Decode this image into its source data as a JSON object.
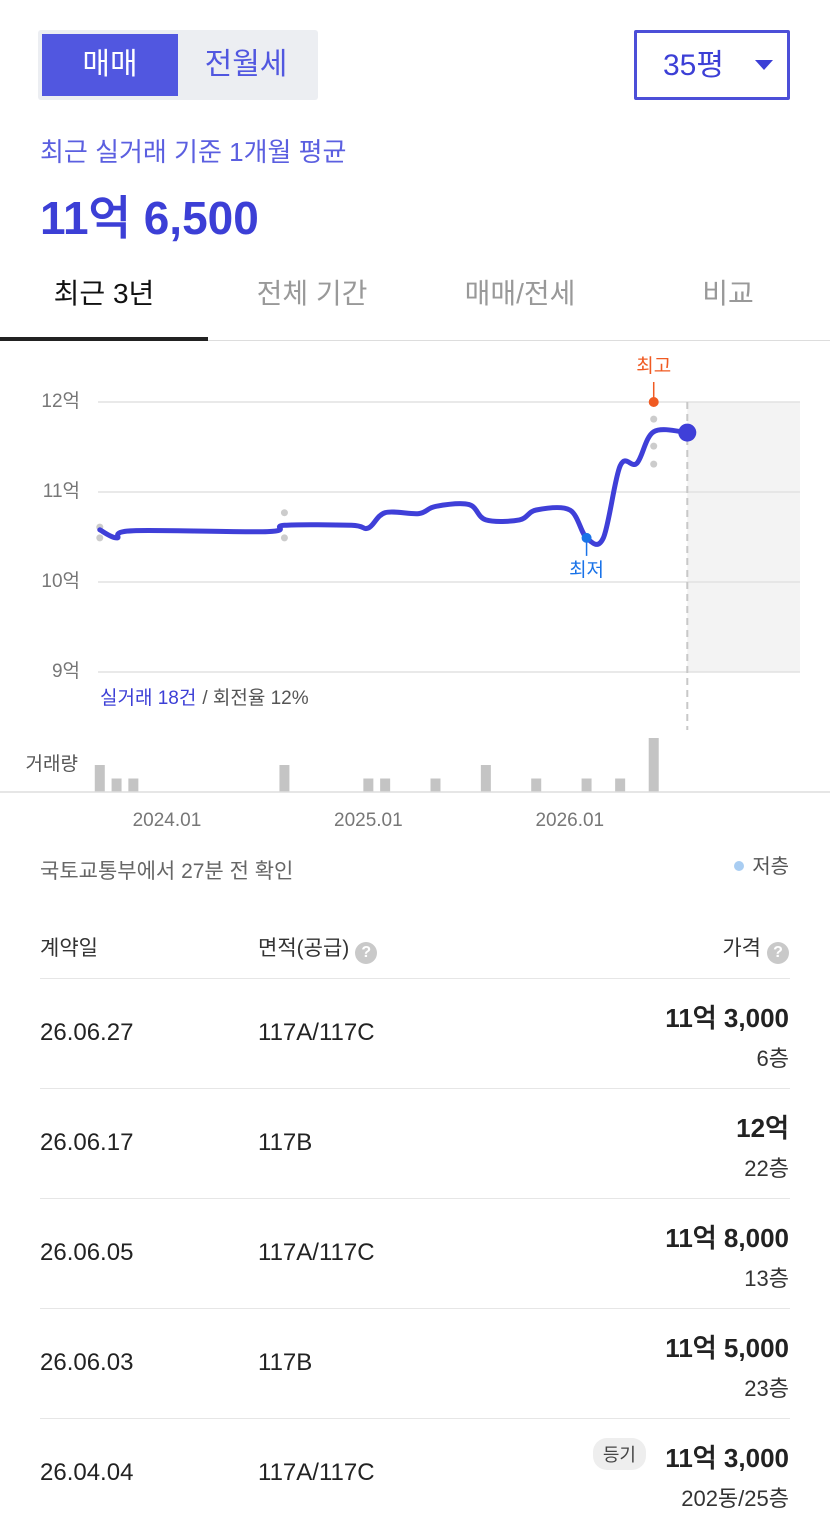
{
  "toggle": {
    "options": [
      "매매",
      "전월세"
    ],
    "active": 0
  },
  "area_select": "35평",
  "summary": {
    "label": "최근 실거래 기준 1개월 평균",
    "price": "11억 6,500"
  },
  "tabs": {
    "items": [
      "최근 3년",
      "전체 기간",
      "매매/전세",
      "비교"
    ],
    "active": 0
  },
  "chart_data": {
    "type": "line",
    "ylim": [
      9,
      12.6
    ],
    "yticks": [
      {
        "value": 12,
        "label": "12억"
      },
      {
        "value": 11,
        "label": "11억"
      },
      {
        "value": 10,
        "label": "10억"
      },
      {
        "value": 9,
        "label": "9억"
      }
    ],
    "xlim": [
      "2023.08",
      "2027.02"
    ],
    "xticks": [
      "2024.01",
      "2025.01",
      "2026.01"
    ],
    "grid": true,
    "series": [
      {
        "name": "실거래",
        "color": "#3f3fd8",
        "x": [
          "2023.09",
          "2023.10",
          "2023.11",
          "2024.07",
          "2024.08",
          "2024.12",
          "2025.01",
          "2025.02",
          "2025.04",
          "2025.05",
          "2025.07",
          "2025.08",
          "2025.10",
          "2025.11",
          "2026.01",
          "2026.02",
          "2026.03",
          "2026.04",
          "2026.05",
          "2026.06",
          "2026.08"
        ],
        "values": [
          10.58,
          10.49,
          10.57,
          10.56,
          10.63,
          10.63,
          10.6,
          10.77,
          10.76,
          10.84,
          10.86,
          10.69,
          10.69,
          10.8,
          10.8,
          10.49,
          10.49,
          11.29,
          11.32,
          11.67,
          11.66
        ]
      }
    ],
    "points": {
      "color": "#cccccc",
      "x": [
        "2023.09",
        "2023.09",
        "2024.08",
        "2024.08",
        "2026.06",
        "2026.06",
        "2026.06"
      ],
      "values": [
        10.61,
        10.49,
        10.77,
        10.49,
        11.81,
        11.51,
        11.31
      ]
    },
    "highest": {
      "label": "최고",
      "x": "2026.06",
      "value": 12,
      "color": "#f05a22"
    },
    "lowest": {
      "label": "최저",
      "x": "2026.02",
      "value": 10.49,
      "color": "#1a73e8"
    },
    "today": "2026.08",
    "volume": {
      "label": "거래량",
      "color": "#c4c4c4",
      "x": [
        "2023.09",
        "2023.10",
        "2023.11",
        "2024.08",
        "2025.01",
        "2025.02",
        "2025.05",
        "2025.08",
        "2025.11",
        "2026.02",
        "2026.04",
        "2026.06"
      ],
      "values": [
        2,
        1,
        1,
        2,
        1,
        1,
        1,
        2,
        1,
        1,
        1,
        4
      ]
    },
    "stats": {
      "count": "실거래 18건",
      "turnover": "/ 회전율 12%"
    }
  },
  "source": "국토교통부에서 27분 전 확인",
  "legend": "저층",
  "table": {
    "headers": [
      "계약일",
      "면적(공급)",
      "가격"
    ],
    "rows": [
      {
        "date": "26.06.27",
        "area": "117A/117C",
        "price": "11억 3,000",
        "floor": "6층"
      },
      {
        "date": "26.06.17",
        "area": "117B",
        "price": "12억",
        "floor": "22층"
      },
      {
        "date": "26.06.05",
        "area": "117A/117C",
        "price": "11억 8,000",
        "floor": "13층"
      },
      {
        "date": "26.06.03",
        "area": "117B",
        "price": "11억 5,000",
        "floor": "23층"
      },
      {
        "date": "26.04.04",
        "area": "117A/117C",
        "price": "11억 3,000",
        "floor": "202동/25층",
        "tag": "등기"
      }
    ]
  }
}
